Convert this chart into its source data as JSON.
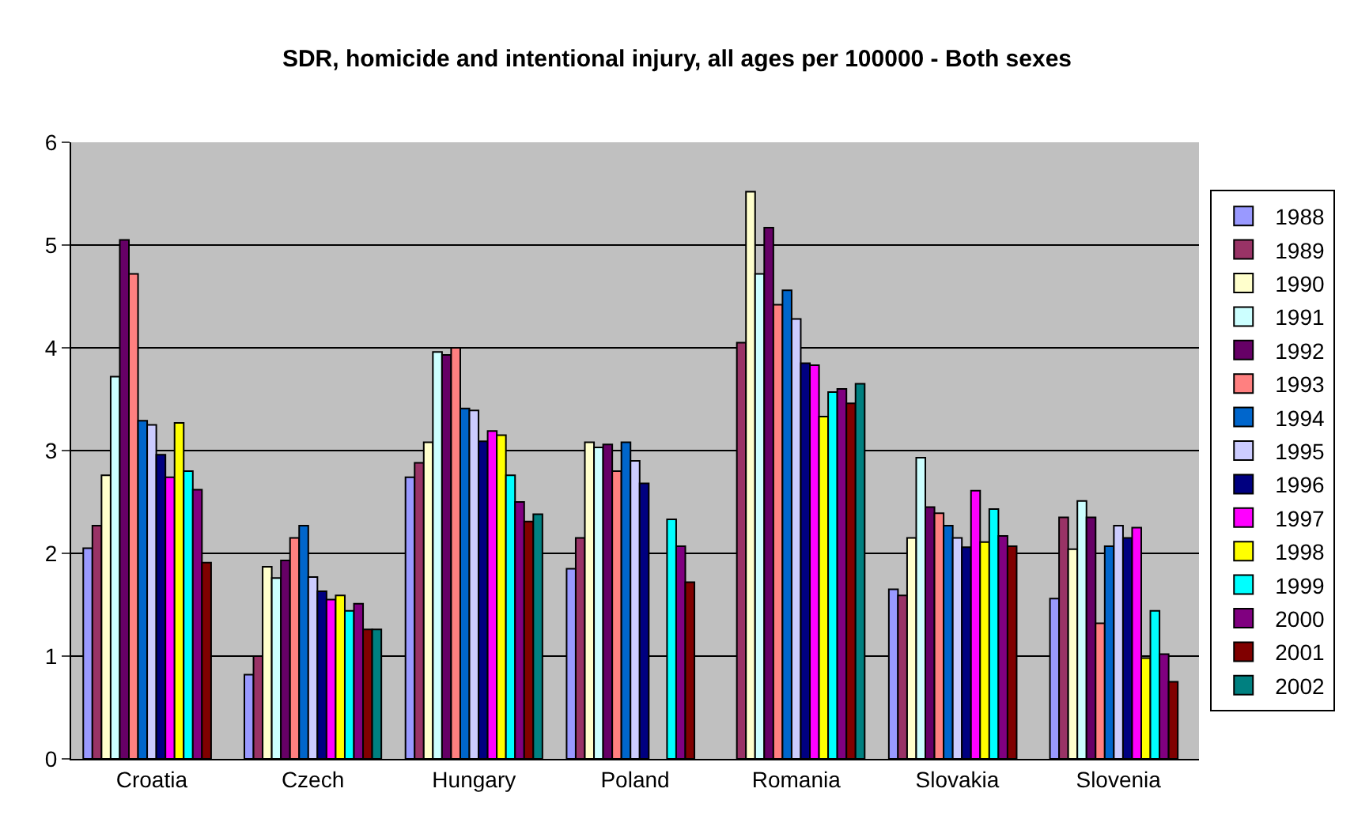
{
  "chart_data": {
    "type": "bar",
    "title": "SDR, homicide and intentional injury, all ages per 100000 - Both sexes",
    "categories": [
      "Croatia",
      "Czech",
      "Hungary",
      "Poland",
      "Romania",
      "Slovakia",
      "Slovenia"
    ],
    "series": [
      {
        "name": "1988",
        "color": "#9999ff",
        "values": [
          2.05,
          0.82,
          2.74,
          1.85,
          null,
          1.65,
          1.56
        ]
      },
      {
        "name": "1989",
        "color": "#993366",
        "values": [
          2.27,
          1.0,
          2.88,
          2.15,
          4.05,
          1.59,
          2.35
        ]
      },
      {
        "name": "1990",
        "color": "#ffffcc",
        "values": [
          2.76,
          1.87,
          3.08,
          3.08,
          5.52,
          2.15,
          2.04
        ]
      },
      {
        "name": "1991",
        "color": "#ccffff",
        "values": [
          3.72,
          1.76,
          3.96,
          3.03,
          4.72,
          2.93,
          2.51
        ]
      },
      {
        "name": "1992",
        "color": "#660066",
        "values": [
          5.05,
          1.93,
          3.93,
          3.06,
          5.17,
          2.45,
          2.35
        ]
      },
      {
        "name": "1993",
        "color": "#ff8080",
        "values": [
          4.72,
          2.15,
          4.0,
          2.8,
          4.42,
          2.39,
          1.32
        ]
      },
      {
        "name": "1994",
        "color": "#0066cc",
        "values": [
          3.29,
          2.27,
          3.41,
          3.08,
          4.56,
          2.27,
          2.07
        ]
      },
      {
        "name": "1995",
        "color": "#ccccff",
        "values": [
          3.25,
          1.77,
          3.39,
          2.9,
          4.28,
          2.15,
          2.27
        ]
      },
      {
        "name": "1996",
        "color": "#000080",
        "values": [
          2.96,
          1.63,
          3.09,
          2.68,
          3.85,
          2.06,
          2.15
        ]
      },
      {
        "name": "1997",
        "color": "#ff00ff",
        "values": [
          2.74,
          1.55,
          3.19,
          null,
          3.83,
          2.61,
          2.25
        ]
      },
      {
        "name": "1998",
        "color": "#ffff00",
        "values": [
          3.27,
          1.59,
          3.15,
          null,
          3.33,
          2.11,
          0.98
        ]
      },
      {
        "name": "1999",
        "color": "#00ffff",
        "values": [
          2.8,
          1.44,
          2.76,
          2.33,
          3.57,
          2.43,
          1.44
        ]
      },
      {
        "name": "2000",
        "color": "#800080",
        "values": [
          2.62,
          1.51,
          2.5,
          2.07,
          3.6,
          2.17,
          1.02
        ]
      },
      {
        "name": "2001",
        "color": "#800000",
        "values": [
          1.91,
          1.26,
          2.31,
          1.72,
          3.46,
          2.07,
          0.75
        ]
      },
      {
        "name": "2002",
        "color": "#008080",
        "values": [
          null,
          1.26,
          2.38,
          null,
          3.65,
          null,
          null
        ]
      }
    ],
    "ylim": [
      0,
      6
    ],
    "yticks": [
      0,
      1,
      2,
      3,
      4,
      5,
      6
    ],
    "grid": "y",
    "legend": "right"
  }
}
